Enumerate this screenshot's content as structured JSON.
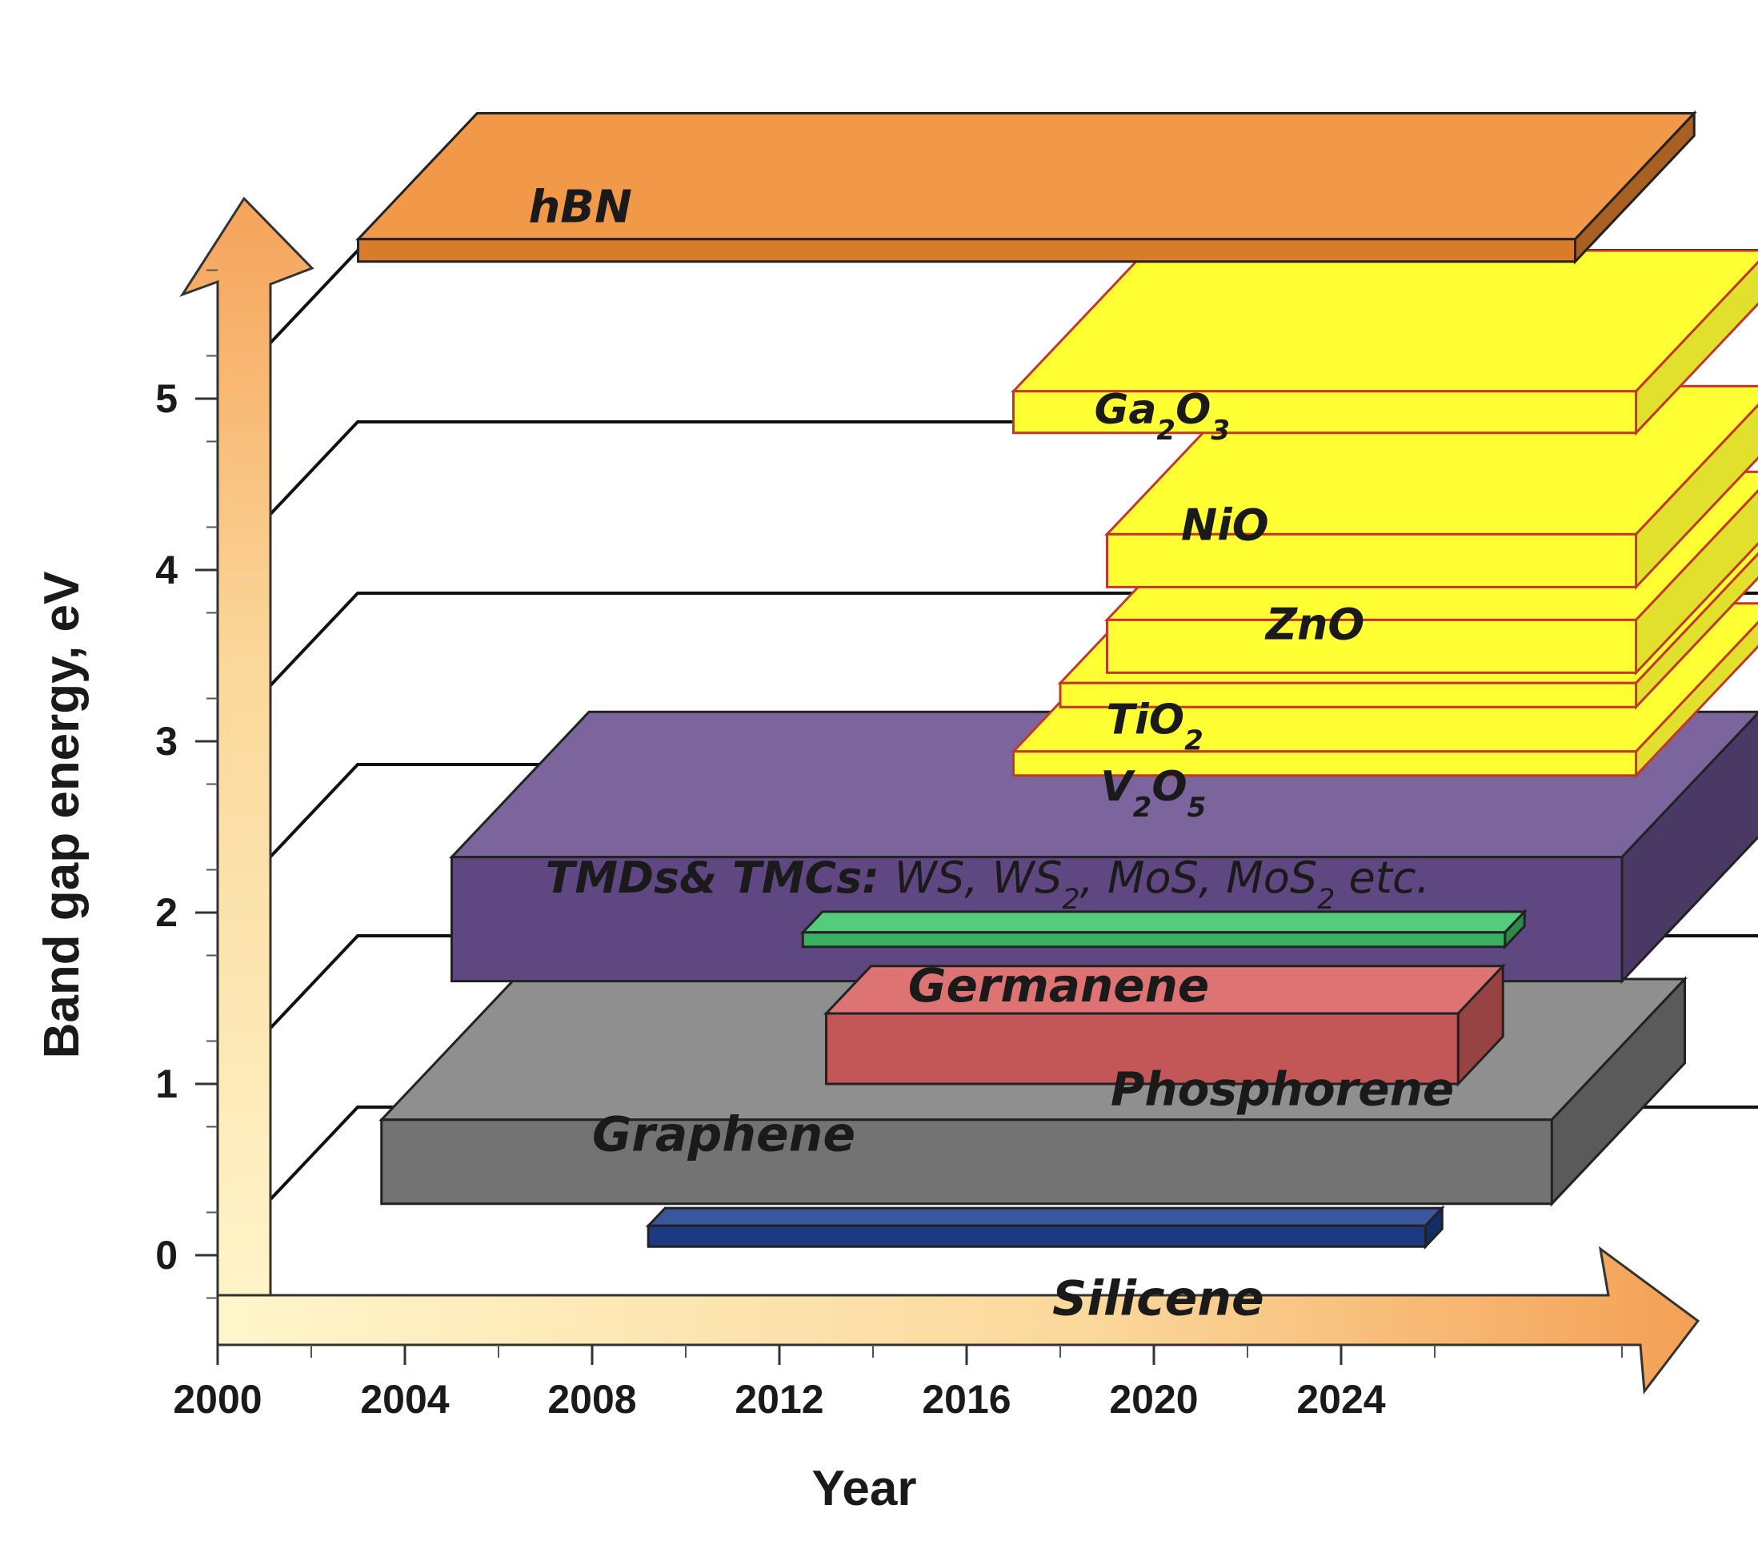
{
  "chart_data": {
    "type": "bar",
    "subtype": "3d-floating-range",
    "title": "",
    "xlabel": "Year",
    "ylabel": "Band gap energy, eV",
    "xticks": [
      2000,
      2004,
      2008,
      2012,
      2016,
      2020,
      2024
    ],
    "yticks": [
      0,
      1,
      2,
      3,
      4,
      5
    ],
    "xlim": [
      2000,
      2031
    ],
    "ylim": [
      -0.5,
      6
    ],
    "grid": true,
    "materials": [
      {
        "name": "Silicene",
        "label_parts": [
          {
            "t": "Silicene"
          }
        ],
        "x_start": 2009.2,
        "x_end": 2025.8,
        "band_gap": 0.05,
        "color": "#1f3f8f"
      },
      {
        "name": "Graphene",
        "label_parts": [
          {
            "t": "Graphene"
          }
        ],
        "x_start": 2003.5,
        "x_end": 2028.5,
        "band_gap": 0.3,
        "color": "#808080"
      },
      {
        "name": "Phosphorene",
        "label_parts": [
          {
            "t": "Phosphorene"
          }
        ],
        "x_start": 2013.0,
        "x_end": 2026.5,
        "band_gap": 1.0,
        "color": "#d96060"
      },
      {
        "name": "Germanene",
        "label_parts": [
          {
            "t": "Germanene"
          }
        ],
        "x_start": 2012.5,
        "x_end": 2027.5,
        "band_gap": 1.8,
        "color": "#3ec46a"
      },
      {
        "name": "TMDs& TMCs: WS, WS2, MoS, MoS2 etc.",
        "label_parts": [
          {
            "t": "TMDs& TMCs: "
          },
          {
            "t": "WS, WS",
            "n": 1
          },
          {
            "t": "2",
            "sub": 1,
            "n": 1
          },
          {
            "t": ", MoS, MoS",
            "n": 1
          },
          {
            "t": "2",
            "sub": 1,
            "n": 1
          },
          {
            "t": " etc.",
            "n": 1
          }
        ],
        "x_start": 2005.0,
        "x_end": 2030.0,
        "band_gap": 1.6,
        "color": "#6a5090"
      },
      {
        "name": "V2O5",
        "label_parts": [
          {
            "t": "V"
          },
          {
            "t": "2",
            "sub": 1
          },
          {
            "t": "O"
          },
          {
            "t": "5",
            "sub": 1
          }
        ],
        "x_start": 2017.0,
        "x_end": 2030.3,
        "band_gap": 2.8,
        "color": "#ffff33"
      },
      {
        "name": "TiO2",
        "label_parts": [
          {
            "t": "TiO"
          },
          {
            "t": "2",
            "sub": 1
          }
        ],
        "x_start": 2018.0,
        "x_end": 2030.3,
        "band_gap": 3.2,
        "color": "#ffff33"
      },
      {
        "name": "ZnO",
        "label_parts": [
          {
            "t": "ZnO"
          }
        ],
        "x_start": 2019.0,
        "x_end": 2030.3,
        "band_gap": 3.4,
        "color": "#ffff33"
      },
      {
        "name": "NiO",
        "label_parts": [
          {
            "t": "NiO"
          }
        ],
        "x_start": 2019.0,
        "x_end": 2030.3,
        "band_gap": 3.9,
        "color": "#ffff33"
      },
      {
        "name": "Ga2O3",
        "label_parts": [
          {
            "t": "Ga"
          },
          {
            "t": "2",
            "sub": 1
          },
          {
            "t": "O"
          },
          {
            "t": "3",
            "sub": 1
          }
        ],
        "x_start": 2017.0,
        "x_end": 2030.3,
        "band_gap": 4.8,
        "color": "#ffff33"
      },
      {
        "name": "hBN",
        "label_parts": [
          {
            "t": "hBN"
          }
        ],
        "x_start": 2003.0,
        "x_end": 2029.0,
        "band_gap": 5.8,
        "color": "#f08a30"
      }
    ]
  }
}
